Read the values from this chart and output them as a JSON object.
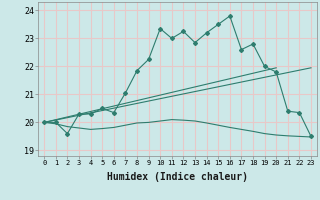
{
  "xlabel": "Humidex (Indice chaleur)",
  "bg_color": "#cce8e8",
  "grid_color": "#e8c8c8",
  "line_color": "#2e7d6e",
  "xlim": [
    -0.5,
    23.5
  ],
  "ylim": [
    18.8,
    24.3
  ],
  "yticks": [
    19,
    20,
    21,
    22,
    23,
    24
  ],
  "xticks": [
    0,
    1,
    2,
    3,
    4,
    5,
    6,
    7,
    8,
    9,
    10,
    11,
    12,
    13,
    14,
    15,
    16,
    17,
    18,
    19,
    20,
    21,
    22,
    23
  ],
  "series1_x": [
    0,
    1,
    2,
    3,
    4,
    5,
    6,
    7,
    8,
    9,
    10,
    11,
    12,
    13,
    14,
    15,
    16,
    17,
    18,
    19,
    20,
    21,
    22,
    23
  ],
  "series1_y": [
    20.0,
    20.0,
    19.6,
    20.3,
    20.3,
    20.5,
    20.35,
    21.05,
    21.85,
    22.25,
    23.35,
    23.0,
    23.25,
    22.85,
    23.2,
    23.5,
    23.8,
    22.6,
    22.8,
    22.0,
    21.8,
    20.4,
    20.35,
    19.5
  ],
  "series2_x": [
    0,
    23
  ],
  "series2_y": [
    20.0,
    21.95
  ],
  "series3_x": [
    0,
    20
  ],
  "series3_y": [
    20.0,
    21.95
  ],
  "series4_x": [
    0,
    1,
    2,
    3,
    4,
    5,
    6,
    7,
    8,
    9,
    10,
    11,
    12,
    13,
    14,
    15,
    16,
    17,
    18,
    19,
    20,
    21,
    22,
    23
  ],
  "series4_y": [
    20.0,
    19.95,
    19.85,
    19.8,
    19.75,
    19.78,
    19.82,
    19.9,
    19.98,
    20.0,
    20.05,
    20.1,
    20.08,
    20.05,
    19.98,
    19.9,
    19.82,
    19.75,
    19.68,
    19.6,
    19.55,
    19.52,
    19.5,
    19.48
  ]
}
